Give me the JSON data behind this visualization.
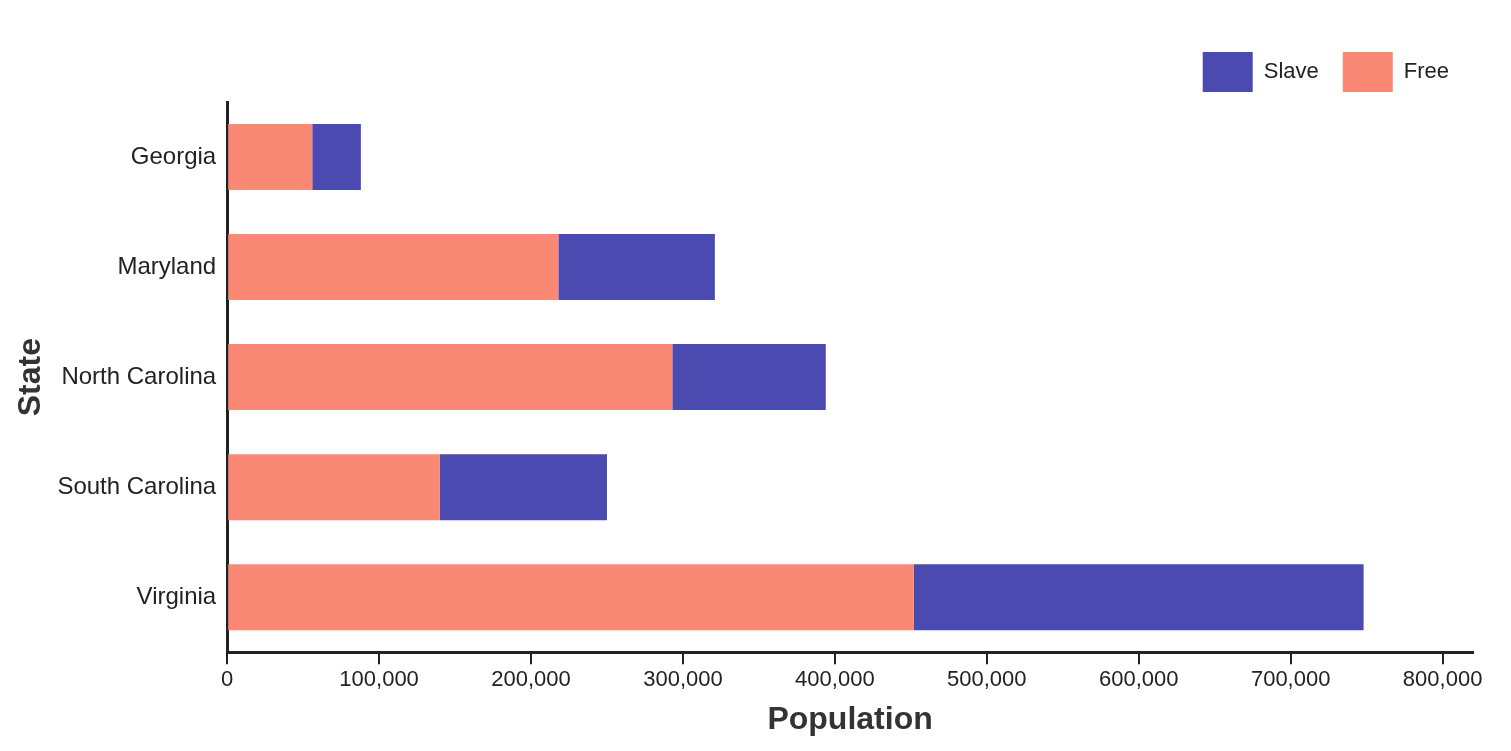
{
  "chart_data": {
    "type": "bar",
    "orientation": "horizontal",
    "stacked": true,
    "xlabel": "Population",
    "ylabel": "State",
    "categories": [
      "Georgia",
      "Maryland",
      "North Carolina",
      "South Carolina",
      "Virginia"
    ],
    "series": [
      {
        "name": "Free",
        "color": "#f98874",
        "values": [
          56000,
          218000,
          293000,
          140000,
          452000
        ]
      },
      {
        "name": "Slave",
        "color": "#4a4ab0",
        "values": [
          32000,
          103000,
          101000,
          110000,
          296000
        ]
      }
    ],
    "xlim": [
      0,
      820000
    ],
    "xticks": [
      0,
      {
        "value": 100000,
        "label": "100,000"
      },
      {
        "value": 200000,
        "label": "200,000"
      },
      {
        "value": 300000,
        "label": "300,000"
      },
      {
        "value": 400000,
        "label": "400,000"
      },
      {
        "value": 500000,
        "label": "500,000"
      },
      {
        "value": 600000,
        "label": "600,000"
      },
      {
        "value": 700000,
        "label": "700,000"
      },
      {
        "value": 800000,
        "label": "800,000"
      }
    ],
    "grid": false,
    "legend": "top right"
  }
}
